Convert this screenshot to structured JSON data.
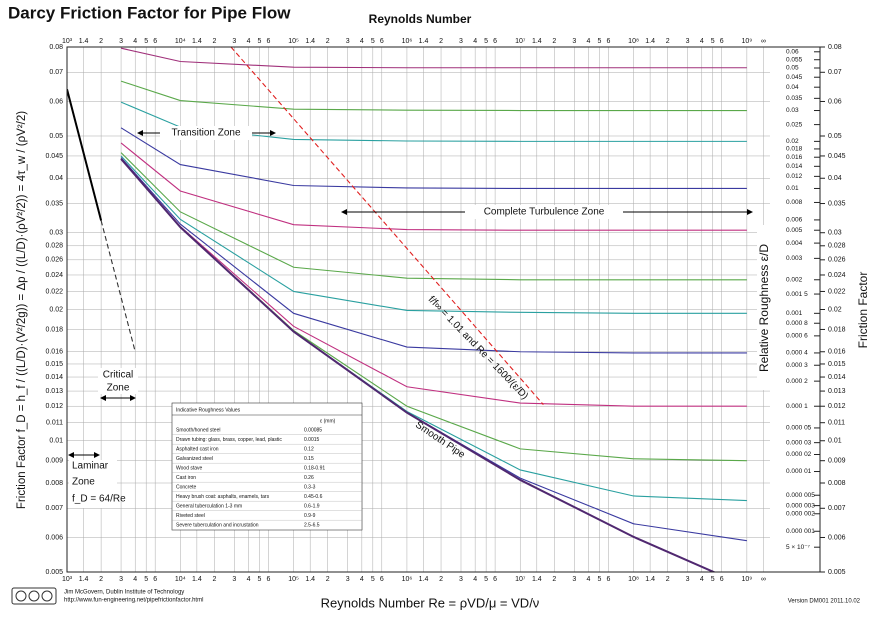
{
  "chart_data": {
    "type": "line",
    "title": "Darcy Friction Factor for Pipe Flow",
    "x_label_top": "Reynolds Number",
    "x_label": "Reynolds Number  Re = ρVD/μ = VD/ν",
    "y_label": "Friction Factor  f_D = h_f / ((L/D)·(V²/2g)) = Δp / ((L/D)·(ρV²/2)) = 4τ_w / (ρV²/2)",
    "y2_label": "Friction Factor",
    "roughness_label": "Relative Roughness  ε/D",
    "log_x": true,
    "log_y": true,
    "grid": true,
    "xlim": [
      1000,
      1600000000
    ],
    "ylim": [
      0.005,
      0.08
    ],
    "xticks": [
      {
        "value": 1000,
        "label": "10³"
      },
      {
        "value": 1400,
        "label": "1.4"
      },
      {
        "value": 2000,
        "label": "2"
      },
      {
        "value": 3000,
        "label": "3"
      },
      {
        "value": 4000,
        "label": "4"
      },
      {
        "value": 5000,
        "label": "5"
      },
      {
        "value": 6000,
        "label": "6"
      },
      {
        "value": 10000,
        "label": "10⁴"
      },
      {
        "value": 14000,
        "label": "1.4"
      },
      {
        "value": 20000,
        "label": "2"
      },
      {
        "value": 30000,
        "label": "3"
      },
      {
        "value": 40000,
        "label": "4"
      },
      {
        "value": 50000,
        "label": "5"
      },
      {
        "value": 60000,
        "label": "6"
      },
      {
        "value": 100000,
        "label": "10⁵"
      },
      {
        "value": 140000,
        "label": "1.4"
      },
      {
        "value": 200000,
        "label": "2"
      },
      {
        "value": 300000,
        "label": "3"
      },
      {
        "value": 400000,
        "label": "4"
      },
      {
        "value": 500000,
        "label": "5"
      },
      {
        "value": 600000,
        "label": "6"
      },
      {
        "value": 1000000,
        "label": "10⁶"
      },
      {
        "value": 1400000,
        "label": "1.4"
      },
      {
        "value": 2000000,
        "label": "2"
      },
      {
        "value": 3000000,
        "label": "3"
      },
      {
        "value": 4000000,
        "label": "4"
      },
      {
        "value": 5000000,
        "label": "5"
      },
      {
        "value": 6000000,
        "label": "6"
      },
      {
        "value": 10000000,
        "label": "10⁷"
      },
      {
        "value": 14000000,
        "label": "1.4"
      },
      {
        "value": 20000000,
        "label": "2"
      },
      {
        "value": 30000000,
        "label": "3"
      },
      {
        "value": 40000000,
        "label": "4"
      },
      {
        "value": 50000000,
        "label": "5"
      },
      {
        "value": 60000000,
        "label": "6"
      },
      {
        "value": 100000000,
        "label": "10⁸"
      },
      {
        "value": 140000000,
        "label": "1.4"
      },
      {
        "value": 200000000,
        "label": "2"
      },
      {
        "value": 300000000,
        "label": "3"
      },
      {
        "value": 400000000,
        "label": "4"
      },
      {
        "value": 500000000,
        "label": "5"
      },
      {
        "value": 600000000,
        "label": "6"
      },
      {
        "value": 1000000000,
        "label": "10⁹"
      },
      {
        "value": 1400000000,
        "label": "∞"
      }
    ],
    "yticks": [
      0.005,
      0.006,
      0.007,
      0.008,
      0.009,
      0.01,
      0.011,
      0.012,
      0.013,
      0.014,
      0.015,
      0.016,
      0.018,
      0.02,
      0.022,
      0.024,
      0.026,
      0.028,
      0.03,
      0.035,
      0.04,
      0.045,
      0.05,
      0.06,
      0.07,
      0.08
    ],
    "roughness_ticks": [
      {
        "value": 0.078,
        "label": "0.06"
      },
      {
        "value": 0.0748,
        "label": "0.055"
      },
      {
        "value": 0.0716,
        "label": "0.05"
      },
      {
        "value": 0.0682,
        "label": "0.045"
      },
      {
        "value": 0.0647,
        "label": "0.04"
      },
      {
        "value": 0.061,
        "label": "0.035"
      },
      {
        "value": 0.0572,
        "label": "0.03"
      },
      {
        "value": 0.0531,
        "label": "0.025"
      },
      {
        "value": 0.0486,
        "label": "0.02"
      },
      {
        "value": 0.0467,
        "label": "0.018"
      },
      {
        "value": 0.0447,
        "label": "0.016"
      },
      {
        "value": 0.0426,
        "label": "0.014"
      },
      {
        "value": 0.0404,
        "label": "0.012"
      },
      {
        "value": 0.0379,
        "label": "0.01"
      },
      {
        "value": 0.0352,
        "label": "0.008"
      },
      {
        "value": 0.0321,
        "label": "0.006"
      },
      {
        "value": 0.0304,
        "label": "0.005"
      },
      {
        "value": 0.0284,
        "label": "0.004"
      },
      {
        "value": 0.0262,
        "label": "0.003"
      },
      {
        "value": 0.0234,
        "label": "0.002"
      },
      {
        "value": 0.0217,
        "label": "0.001 5"
      },
      {
        "value": 0.0196,
        "label": "0.001"
      },
      {
        "value": 0.0186,
        "label": "0.000 8"
      },
      {
        "value": 0.0174,
        "label": "0.000 6"
      },
      {
        "value": 0.0159,
        "label": "0.000 4"
      },
      {
        "value": 0.0149,
        "label": "0.000 3"
      },
      {
        "value": 0.0137,
        "label": "0.000 2"
      },
      {
        "value": 0.012,
        "label": "0.000 1"
      },
      {
        "value": 0.0107,
        "label": "0.000 05"
      },
      {
        "value": 0.0099,
        "label": "0.000 03"
      },
      {
        "value": 0.0093,
        "label": "0.000 02"
      },
      {
        "value": 0.0085,
        "label": "0.000 01"
      },
      {
        "value": 0.0075,
        "label": "0.000 005"
      },
      {
        "value": 0.0071,
        "label": "0.000 003"
      },
      {
        "value": 0.0068,
        "label": "0.000 002"
      },
      {
        "value": 0.0062,
        "label": "0.000 001"
      },
      {
        "value": 0.0057,
        "label": "5 × 10⁻⁷"
      }
    ],
    "x": [
      3000,
      10000,
      100000,
      1000000,
      10000000,
      100000000,
      1000000000
    ],
    "series": [
      {
        "color": "#a0307a",
        "values": [
          0.0795,
          0.0741,
          0.0719,
          0.0717,
          0.0717,
          0.0717,
          0.0717
        ]
      },
      {
        "color": "#5aa84a",
        "values": [
          0.0668,
          0.0603,
          0.0576,
          0.0573,
          0.0572,
          0.0572,
          0.0572
        ]
      },
      {
        "color": "#2aa0a0",
        "values": [
          0.0598,
          0.0524,
          0.0491,
          0.0487,
          0.0486,
          0.0486,
          0.0486
        ]
      },
      {
        "color": "#3a3aa0",
        "values": [
          0.0522,
          0.043,
          0.0385,
          0.038,
          0.0379,
          0.0379,
          0.0379
        ]
      },
      {
        "color": "#c03080",
        "values": [
          0.0482,
          0.0374,
          0.0313,
          0.0305,
          0.0304,
          0.0304,
          0.0304
        ]
      },
      {
        "color": "#5aa84a",
        "values": [
          0.0458,
          0.0335,
          0.025,
          0.0236,
          0.0234,
          0.0234,
          0.0234
        ]
      },
      {
        "color": "#2aa0a0",
        "values": [
          0.045,
          0.0322,
          0.022,
          0.0199,
          0.0197,
          0.0196,
          0.0196
        ]
      },
      {
        "color": "#3a3aa0",
        "values": [
          0.0446,
          0.0314,
          0.0196,
          0.0164,
          0.016,
          0.0159,
          0.0159
        ]
      },
      {
        "color": "#c03080",
        "values": [
          0.0444,
          0.031,
          0.0183,
          0.0133,
          0.0122,
          0.012,
          0.012
        ]
      },
      {
        "color": "#5aa84a",
        "values": [
          0.0443,
          0.0309,
          0.0179,
          0.012,
          0.00958,
          0.00909,
          0.009
        ]
      },
      {
        "color": "#2aa0a0",
        "values": [
          null,
          null,
          0.0178,
          0.01167,
          0.00857,
          0.00747,
          0.00729
        ]
      },
      {
        "color": "#3a3aa0",
        "values": [
          null,
          null,
          null,
          0.0116,
          0.00821,
          0.00645,
          0.0059
        ]
      },
      {
        "name": "Smooth Pipe",
        "color": "#502870",
        "width": 2,
        "values": [
          0.0443,
          0.0309,
          0.0178,
          0.0116,
          0.00813,
          0.00602,
          0.00463
        ]
      },
      {
        "color": "#000000",
        "width": 2,
        "x": [
          1000,
          2000
        ],
        "values": [
          0.064,
          0.032
        ]
      },
      {
        "color": "#333333",
        "dashed": true,
        "x": [
          2000,
          4000
        ],
        "values": [
          0.032,
          0.016
        ]
      },
      {
        "color": "#e02020",
        "dashed": true,
        "x": [
          28000,
          16000000
        ],
        "values": [
          0.08,
          0.0121
        ]
      }
    ],
    "annotations": {
      "transition": "Transition Zone",
      "complete": "Complete Turbulence Zone",
      "critical_1": "Critical",
      "critical_2": "Zone",
      "laminar_1": "Laminar",
      "laminar_2": "Zone",
      "laminar_3": "f_D = 64/Re",
      "boundary": "f/f∞ = 1.01   and   Re = 1600/(ε/D)"
    },
    "table": {
      "title": "Indicative Roughness Values",
      "header": "ε (mm)",
      "rows": [
        [
          "Smooth/honed steel",
          "0.00085"
        ],
        [
          "Drawn tubing: glass, brass, copper, lead, plastic",
          "0.0015"
        ],
        [
          "Asphalted cast iron",
          "0.12"
        ],
        [
          "Galvanized steel",
          "0.15"
        ],
        [
          "Wood stave",
          "0.18-0.91"
        ],
        [
          "Cast iron",
          "0.26"
        ],
        [
          "Concrete",
          "0.3-3"
        ],
        [
          "Heavy brush coat: asphalts, enamels, tars",
          "0.45-0.6"
        ],
        [
          "General tuberculation 1-3 mm",
          "0.6-1.9"
        ],
        [
          "Riveted steel",
          "0.9-9"
        ],
        [
          "Severe tuberculation and incrustation",
          "2.5-6.5"
        ]
      ]
    },
    "credit_1": "Jim McGovern, Dublin Institute of Technology",
    "credit_2": "http://www.fun-engineering.net/pipefrictionfactor.html",
    "version": "Version DM001 2011.10.02"
  }
}
